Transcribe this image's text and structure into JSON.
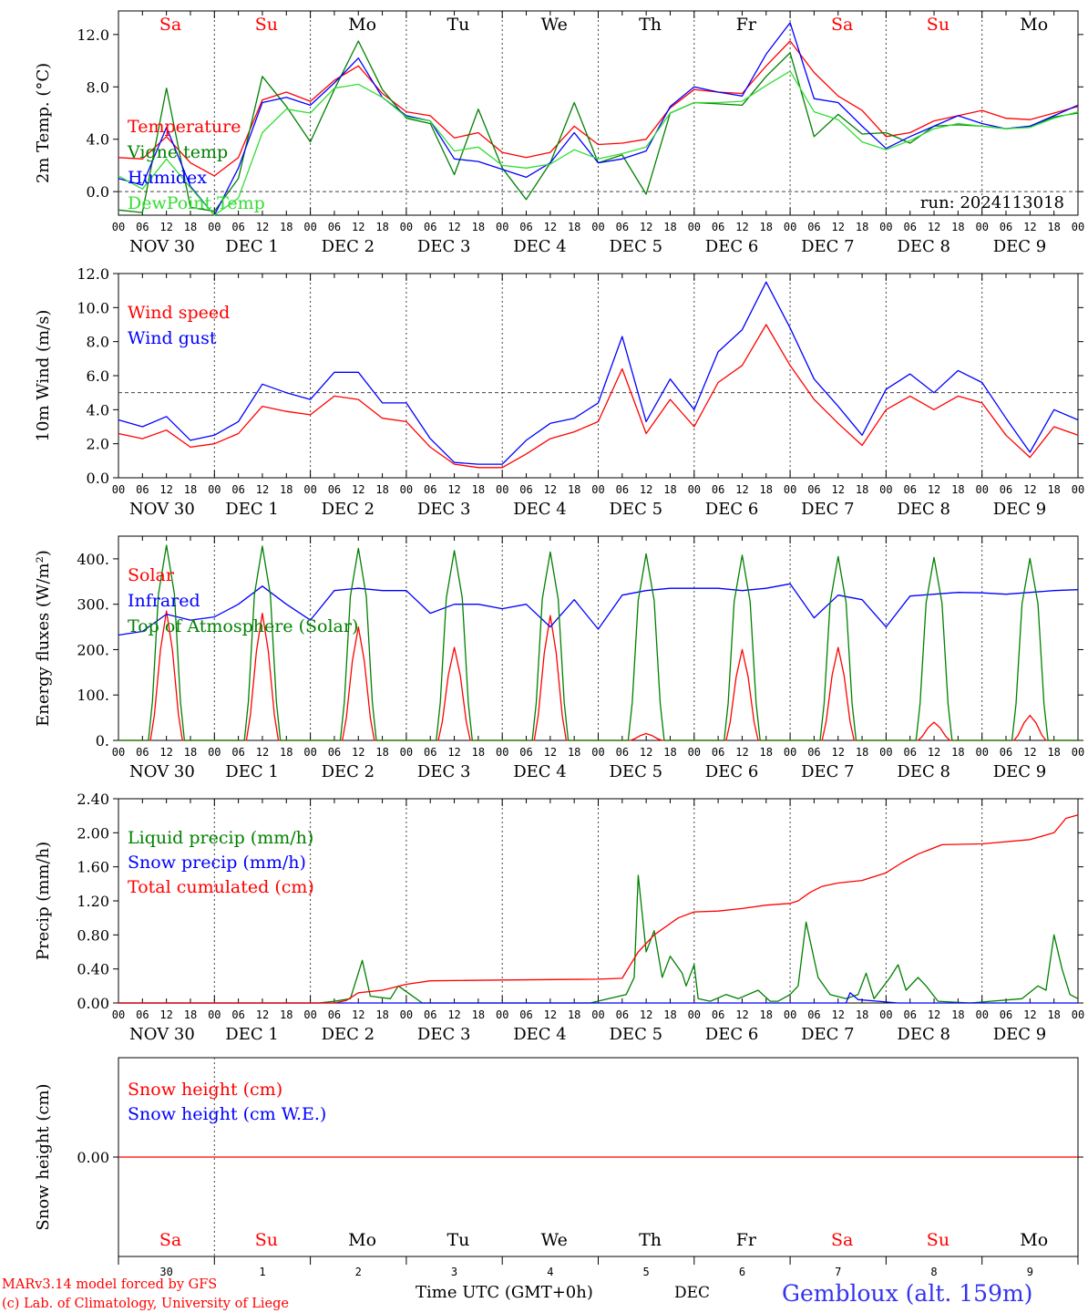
{
  "colors": {
    "red": "#ff0000",
    "green": "#008000",
    "blue": "#0000ff",
    "light_green": "#33dd33",
    "grid": "#444444"
  },
  "hour_labels": [
    "00",
    "06",
    "12",
    "18"
  ],
  "date_labels": [
    "NOV 30",
    "DEC  1",
    "DEC  2",
    "DEC  3",
    "DEC  4",
    "DEC  5",
    "DEC  6",
    "DEC  7",
    "DEC  8",
    "DEC  9"
  ],
  "weekday_labels": [
    {
      "text": "Sa",
      "color": "red"
    },
    {
      "text": "Su",
      "color": "red"
    },
    {
      "text": "Mo",
      "color": "black"
    },
    {
      "text": "Tu",
      "color": "black"
    },
    {
      "text": "We",
      "color": "black"
    },
    {
      "text": "Th",
      "color": "black"
    },
    {
      "text": "Fr",
      "color": "black"
    },
    {
      "text": "Sa",
      "color": "red"
    },
    {
      "text": "Su",
      "color": "red"
    },
    {
      "text": "Mo",
      "color": "black"
    }
  ],
  "day_numbers": [
    "30",
    "1",
    "2",
    "3",
    "4",
    "5",
    "6",
    "7",
    "8",
    "9"
  ],
  "footer": {
    "credit_1": "MARv3.14 model forced by GFS",
    "credit_2": "(c) Lab. of Climatology, University of Liege",
    "x_title": "Time UTC (GMT+0h)",
    "month": "DEC",
    "station": "Gembloux (alt. 159m)"
  },
  "chart_data": [
    {
      "type": "line",
      "ylabel": "2m Temp. (°C)",
      "ylim": [
        -1.8,
        13.8
      ],
      "yticks": [
        0,
        4,
        8,
        12
      ],
      "ytick_labels": [
        "0.0",
        "4.0",
        "8.0",
        "12.0"
      ],
      "ref_line": 0,
      "annotation": "run: 2024113018",
      "x_hours": [
        0,
        6,
        12,
        18,
        24,
        30,
        36,
        42,
        48,
        54,
        60,
        66,
        72,
        78,
        84,
        90,
        96,
        102,
        108,
        114,
        120,
        126,
        132,
        138,
        144,
        150,
        156,
        162,
        168,
        174,
        180,
        186,
        192,
        198,
        204,
        210,
        216,
        222,
        228,
        234,
        240
      ],
      "series": [
        {
          "name": "Temperature",
          "color": "red",
          "values": [
            2.6,
            2.5,
            4.2,
            2.2,
            1.2,
            2.6,
            7.0,
            7.6,
            6.9,
            8.5,
            9.6,
            7.5,
            6.1,
            5.8,
            4.1,
            4.5,
            3.0,
            2.6,
            3.0,
            5.0,
            3.6,
            3.7,
            4.0,
            6.4,
            7.8,
            7.6,
            7.5,
            9.6,
            11.5,
            9.1,
            7.3,
            6.2,
            4.2,
            4.5,
            5.4,
            5.8,
            6.2,
            5.6,
            5.5,
            6.0,
            6.5
          ]
        },
        {
          "name": "Vigne temp",
          "color": "green",
          "values": [
            -1.4,
            -1.6,
            7.9,
            -1.2,
            -1.5,
            1.0,
            8.8,
            6.5,
            3.8,
            7.8,
            11.5,
            7.8,
            5.6,
            5.2,
            1.3,
            6.3,
            1.8,
            -0.6,
            2.2,
            6.8,
            2.2,
            2.8,
            -0.2,
            6.0,
            6.8,
            6.7,
            6.6,
            8.8,
            10.6,
            4.2,
            5.9,
            4.4,
            4.5,
            3.7,
            5.0,
            5.1,
            5.0,
            4.8,
            5.0,
            5.7,
            6.0
          ]
        },
        {
          "name": "Humidex",
          "color": "blue",
          "values": [
            1.0,
            0.5,
            4.9,
            0.4,
            -1.8,
            1.8,
            6.8,
            7.2,
            6.6,
            8.3,
            10.2,
            7.2,
            5.8,
            5.4,
            2.5,
            2.3,
            1.7,
            1.1,
            2.2,
            4.5,
            2.2,
            2.5,
            3.1,
            6.5,
            8.0,
            7.6,
            7.3,
            10.5,
            12.9,
            7.1,
            6.8,
            5.0,
            3.3,
            4.2,
            5.0,
            5.8,
            5.2,
            4.8,
            5.0,
            5.8,
            6.6
          ]
        },
        {
          "name": "DewPoint Temp",
          "color": "light_green",
          "values": [
            1.2,
            0.2,
            2.5,
            0.3,
            -1.8,
            -0.5,
            4.5,
            6.3,
            6.0,
            7.9,
            8.2,
            7.2,
            5.7,
            5.4,
            3.1,
            3.4,
            2.0,
            1.8,
            2.1,
            3.2,
            2.5,
            2.9,
            3.4,
            6.0,
            6.8,
            6.8,
            6.9,
            8.1,
            9.2,
            6.1,
            5.5,
            3.8,
            3.2,
            3.9,
            4.8,
            5.2,
            5.0,
            4.8,
            4.9,
            5.6,
            6.1
          ]
        }
      ]
    },
    {
      "type": "line",
      "ylabel": "10m Wind (m/s)",
      "ylim": [
        0,
        12
      ],
      "yticks": [
        0,
        2,
        4,
        6,
        8,
        10,
        12
      ],
      "ytick_labels": [
        "0.0",
        "2.0",
        "4.0",
        "6.0",
        "8.0",
        "10.0",
        "12.0"
      ],
      "ref_line": 5,
      "x_hours": [
        0,
        6,
        12,
        18,
        24,
        30,
        36,
        42,
        48,
        54,
        60,
        66,
        72,
        78,
        84,
        90,
        96,
        102,
        108,
        114,
        120,
        126,
        132,
        138,
        144,
        150,
        156,
        162,
        168,
        174,
        180,
        186,
        192,
        198,
        204,
        210,
        216,
        222,
        228,
        234,
        240
      ],
      "series": [
        {
          "name": "Wind speed",
          "color": "red",
          "values": [
            2.6,
            2.3,
            2.8,
            1.8,
            2.0,
            2.6,
            4.2,
            3.9,
            3.7,
            4.8,
            4.6,
            3.5,
            3.3,
            1.8,
            0.8,
            0.6,
            0.6,
            1.4,
            2.3,
            2.7,
            3.3,
            6.4,
            2.6,
            4.6,
            3.0,
            5.6,
            6.6,
            9.0,
            6.6,
            4.6,
            3.2,
            1.9,
            4.0,
            4.8,
            4.0,
            4.8,
            4.4,
            2.5,
            1.2,
            3.0,
            2.5
          ]
        },
        {
          "name": "Wind gust",
          "color": "blue",
          "values": [
            3.4,
            3.0,
            3.6,
            2.2,
            2.5,
            3.3,
            5.5,
            5.0,
            4.6,
            6.2,
            6.2,
            4.4,
            4.4,
            2.3,
            0.9,
            0.8,
            0.8,
            2.2,
            3.2,
            3.5,
            4.4,
            8.3,
            3.3,
            5.8,
            4.0,
            7.4,
            8.7,
            11.5,
            8.8,
            5.8,
            4.2,
            2.5,
            5.2,
            6.1,
            5.0,
            6.3,
            5.6,
            3.5,
            1.5,
            4.0,
            3.4
          ]
        }
      ]
    },
    {
      "type": "line",
      "ylabel": "Energy fluxes (W/m²)",
      "ylim": [
        0,
        450
      ],
      "yticks": [
        0,
        100,
        200,
        300,
        400
      ],
      "ytick_labels": [
        "0.",
        "100.",
        "200.",
        "300.",
        "400."
      ],
      "days": 10,
      "series": [
        {
          "name": "Solar",
          "color": "red",
          "daily_peaks": [
            285,
            280,
            250,
            205,
            275,
            15,
            200,
            205,
            40,
            55
          ]
        },
        {
          "name": "Infrared",
          "color": "blue",
          "x_hours": [
            0,
            6,
            12,
            18,
            24,
            30,
            36,
            42,
            48,
            54,
            60,
            66,
            72,
            78,
            84,
            90,
            96,
            102,
            108,
            114,
            120,
            126,
            132,
            138,
            144,
            150,
            156,
            162,
            168,
            174,
            180,
            186,
            192,
            198,
            204,
            210,
            216,
            222,
            228,
            234,
            240
          ],
          "values": [
            232,
            240,
            278,
            265,
            272,
            300,
            340,
            300,
            265,
            330,
            335,
            330,
            330,
            280,
            300,
            300,
            290,
            300,
            250,
            310,
            245,
            320,
            330,
            335,
            335,
            335,
            330,
            335,
            345,
            270,
            320,
            310,
            250,
            318,
            322,
            326,
            325,
            322,
            326,
            330,
            332
          ]
        },
        {
          "name": "Top of Atmosphere (Solar)",
          "color": "green",
          "daily_peaks": [
            430,
            428,
            423,
            418,
            415,
            411,
            408,
            405,
            403,
            401
          ]
        }
      ]
    },
    {
      "type": "line",
      "ylabel": "Precip (mm/h)",
      "ylim": [
        0,
        2.4
      ],
      "yticks": [
        0,
        0.4,
        0.8,
        1.2,
        1.6,
        2.0,
        2.4
      ],
      "ytick_labels": [
        "0.00",
        "0.40",
        "0.80",
        "1.20",
        "1.60",
        "2.00",
        "2.40"
      ],
      "series": [
        {
          "name": "Liquid precip (mm/h)",
          "color": "green",
          "points": [
            [
              0,
              0
            ],
            [
              50,
              0
            ],
            [
              54,
              0.02
            ],
            [
              58,
              0.05
            ],
            [
              61,
              0.5
            ],
            [
              63,
              0.08
            ],
            [
              68,
              0.05
            ],
            [
              70,
              0.2
            ],
            [
              73,
              0.1
            ],
            [
              76,
              0
            ],
            [
              118,
              0
            ],
            [
              127,
              0.1
            ],
            [
              129,
              0.3
            ],
            [
              130,
              1.5
            ],
            [
              132,
              0.6
            ],
            [
              134,
              0.85
            ],
            [
              136,
              0.3
            ],
            [
              138,
              0.55
            ],
            [
              141,
              0.35
            ],
            [
              142,
              0.2
            ],
            [
              144,
              0.45
            ],
            [
              145,
              0.05
            ],
            [
              148,
              0.02
            ],
            [
              152,
              0.1
            ],
            [
              155,
              0.05
            ],
            [
              160,
              0.15
            ],
            [
              163,
              0.02
            ],
            [
              165,
              0.02
            ],
            [
              168,
              0.1
            ],
            [
              170,
              0.2
            ],
            [
              172,
              0.95
            ],
            [
              175,
              0.3
            ],
            [
              178,
              0.1
            ],
            [
              182,
              0.05
            ],
            [
              185,
              0.1
            ],
            [
              187,
              0.35
            ],
            [
              189,
              0.05
            ],
            [
              193,
              0.3
            ],
            [
              195,
              0.45
            ],
            [
              197,
              0.15
            ],
            [
              200,
              0.3
            ],
            [
              202,
              0.2
            ],
            [
              205,
              0.02
            ],
            [
              213,
              0
            ],
            [
              226,
              0.05
            ],
            [
              230,
              0.2
            ],
            [
              232,
              0.15
            ],
            [
              234,
              0.8
            ],
            [
              236,
              0.4
            ],
            [
              238,
              0.1
            ],
            [
              240,
              0.05
            ]
          ]
        },
        {
          "name": "Snow precip (mm/h)",
          "color": "blue",
          "points": [
            [
              0,
              0
            ],
            [
              182,
              0
            ],
            [
              183,
              0.12
            ],
            [
              185,
              0.04
            ],
            [
              190,
              0.02
            ],
            [
              195,
              0
            ],
            [
              240,
              0
            ]
          ]
        },
        {
          "name": "Total cumulated (cm)",
          "color": "red",
          "points": [
            [
              0,
              0
            ],
            [
              54,
              0
            ],
            [
              57,
              0.03
            ],
            [
              60,
              0.12
            ],
            [
              66,
              0.15
            ],
            [
              72,
              0.22
            ],
            [
              78,
              0.26
            ],
            [
              96,
              0.27
            ],
            [
              120,
              0.28
            ],
            [
              126,
              0.29
            ],
            [
              130,
              0.6
            ],
            [
              134,
              0.8
            ],
            [
              140,
              1.0
            ],
            [
              144,
              1.07
            ],
            [
              150,
              1.08
            ],
            [
              156,
              1.11
            ],
            [
              162,
              1.15
            ],
            [
              168,
              1.17
            ],
            [
              170,
              1.2
            ],
            [
              173,
              1.3
            ],
            [
              176,
              1.37
            ],
            [
              180,
              1.41
            ],
            [
              186,
              1.44
            ],
            [
              192,
              1.53
            ],
            [
              196,
              1.65
            ],
            [
              200,
              1.75
            ],
            [
              206,
              1.86
            ],
            [
              216,
              1.87
            ],
            [
              228,
              1.92
            ],
            [
              234,
              2.0
            ],
            [
              237,
              2.17
            ],
            [
              240,
              2.21
            ]
          ]
        }
      ]
    },
    {
      "type": "line",
      "ylabel": "Snow height (cm)",
      "yticks": [
        0
      ],
      "ytick_labels": [
        "0.00"
      ],
      "series": [
        {
          "name": "Snow height (cm)",
          "color": "red",
          "values": [
            0,
            0
          ]
        },
        {
          "name": "Snow height (cm W.E.)",
          "color": "blue",
          "values": []
        }
      ]
    }
  ]
}
